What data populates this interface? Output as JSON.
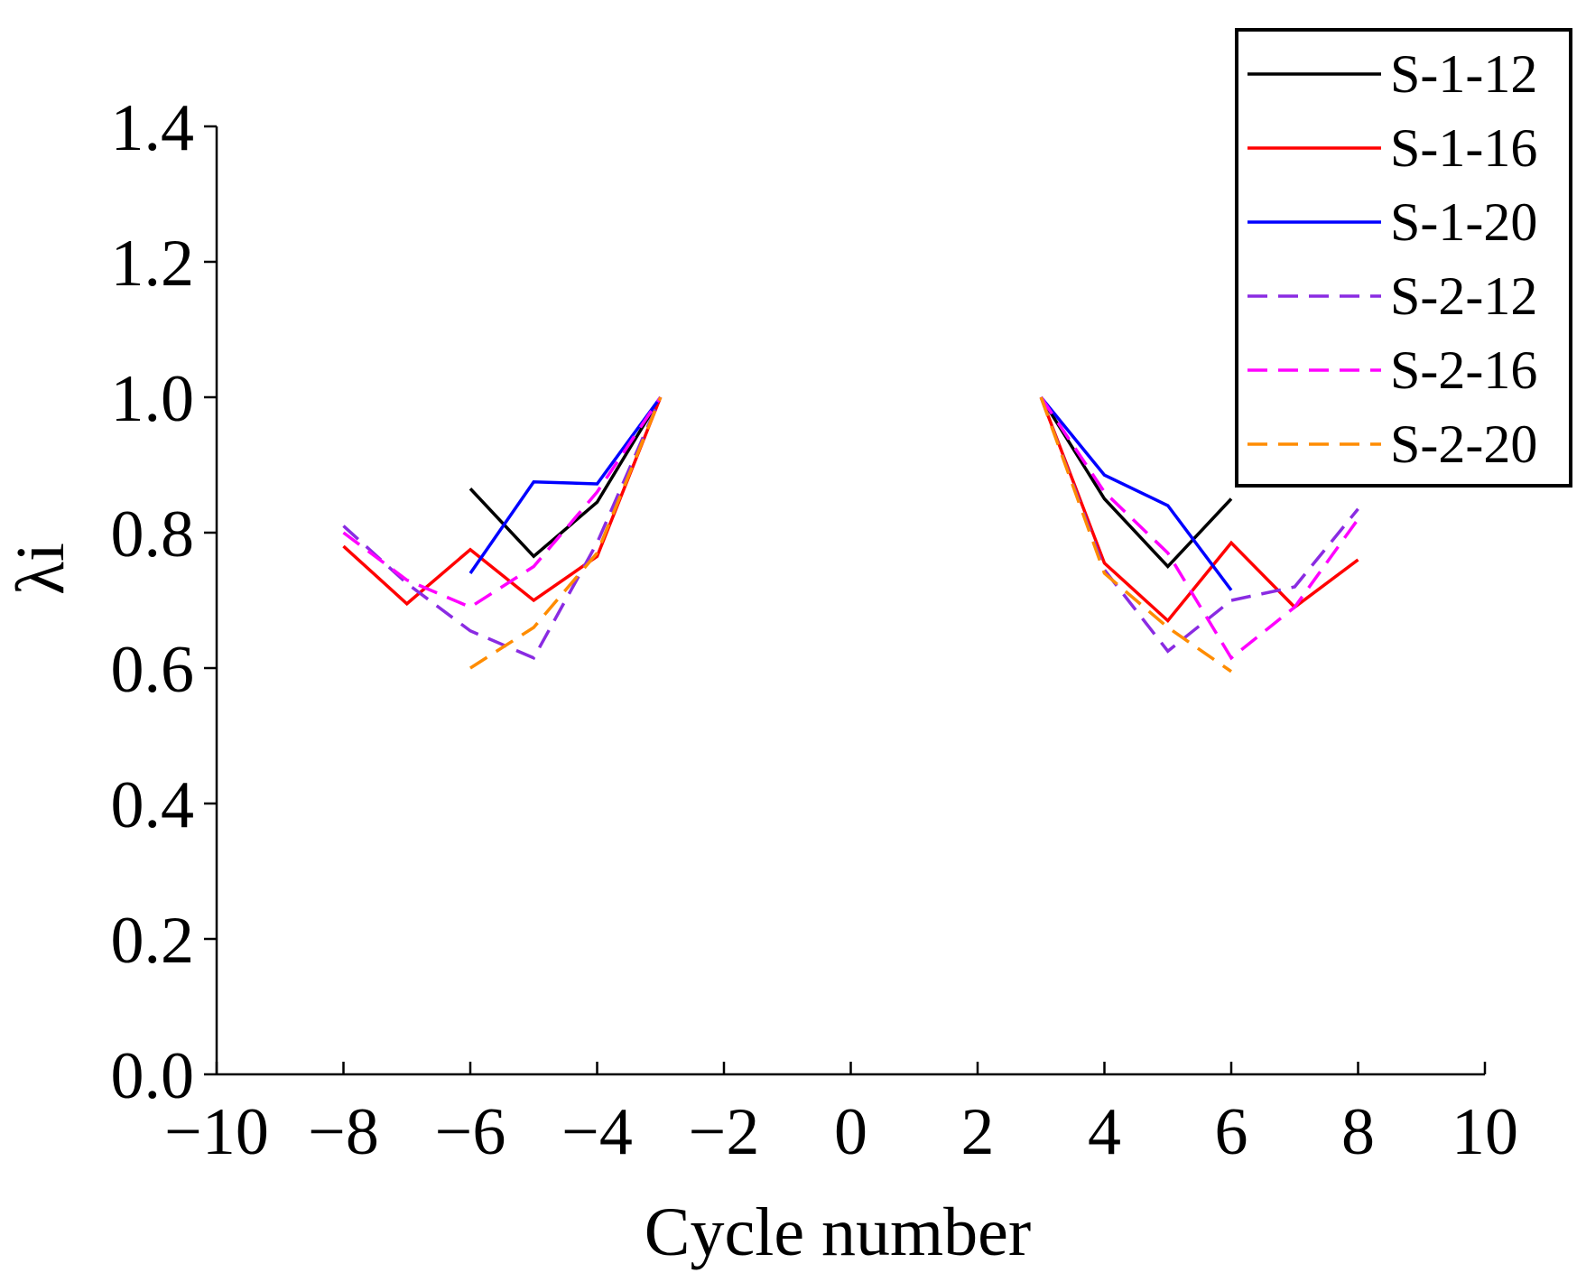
{
  "chart_data": {
    "type": "line",
    "title": "",
    "xlabel": "Cycle number",
    "ylabel": "λi",
    "xlim": [
      -10,
      10
    ],
    "ylim": [
      0.0,
      1.4
    ],
    "xticks": [
      -10,
      -8,
      -6,
      -4,
      -2,
      0,
      2,
      4,
      6,
      8,
      10
    ],
    "xtick_labels": [
      "−10",
      "−8",
      "−6",
      "−4",
      "−2",
      "0",
      "2",
      "4",
      "6",
      "8",
      "10"
    ],
    "yticks": [
      0.0,
      0.2,
      0.4,
      0.6,
      0.8,
      1.0,
      1.2,
      1.4
    ],
    "ytick_labels": [
      "0.0",
      "0.2",
      "0.4",
      "0.6",
      "0.8",
      "1.0",
      "1.2",
      "1.4"
    ],
    "grid": false,
    "legend_position": "top-right",
    "series": [
      {
        "name": "S-1-12",
        "color": "#000000",
        "dash": "solid",
        "x": [
          -6,
          -5,
          -4,
          -3,
          3,
          4,
          5,
          6
        ],
        "y": [
          0.865,
          0.765,
          0.845,
          1.0,
          1.0,
          0.85,
          0.75,
          0.85
        ]
      },
      {
        "name": "S-1-16",
        "color": "#ff0000",
        "dash": "solid",
        "x": [
          -8,
          -7,
          -6,
          -5,
          -4,
          -3,
          3,
          4,
          5,
          6,
          7,
          8
        ],
        "y": [
          0.78,
          0.695,
          0.775,
          0.7,
          0.765,
          1.0,
          1.0,
          0.755,
          0.67,
          0.785,
          0.69,
          0.76
        ]
      },
      {
        "name": "S-1-20",
        "color": "#0000ff",
        "dash": "solid",
        "x": [
          -6,
          -5,
          -4,
          -3,
          3,
          4,
          5,
          6
        ],
        "y": [
          0.74,
          0.875,
          0.872,
          1.0,
          1.0,
          0.885,
          0.84,
          0.715
        ]
      },
      {
        "name": "S-2-12",
        "color": "#8a2be2",
        "dash": "dashed",
        "x": [
          -8,
          -7,
          -6,
          -5,
          -4,
          -3,
          3,
          4,
          5,
          6,
          7,
          8
        ],
        "y": [
          0.81,
          0.725,
          0.655,
          0.615,
          0.785,
          1.0,
          1.0,
          0.745,
          0.625,
          0.7,
          0.72,
          0.835
        ]
      },
      {
        "name": "S-2-16",
        "color": "#ff00ff",
        "dash": "dashed",
        "x": [
          -8,
          -7,
          -6,
          -5,
          -4,
          -3,
          3,
          4,
          5,
          6,
          7,
          8
        ],
        "y": [
          0.8,
          0.73,
          0.69,
          0.75,
          0.86,
          1.0,
          1.0,
          0.86,
          0.77,
          0.615,
          0.69,
          0.82
        ]
      },
      {
        "name": "S-2-20",
        "color": "#ff8c00",
        "dash": "dashed",
        "x": [
          -6,
          -5,
          -4,
          -3,
          3,
          4,
          5,
          6
        ],
        "y": [
          0.6,
          0.66,
          0.77,
          1.0,
          1.0,
          0.74,
          0.66,
          0.595
        ]
      }
    ]
  }
}
